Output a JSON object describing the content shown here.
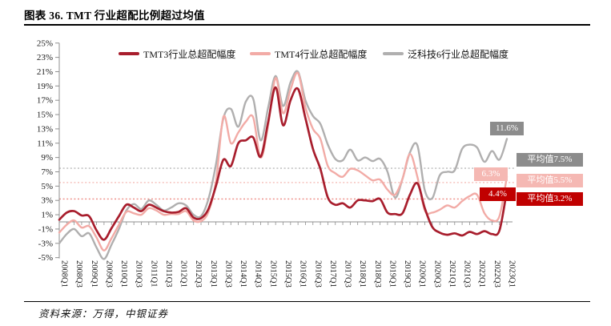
{
  "header": {
    "title": "图表 36. TMT 行业超配比例超过均值"
  },
  "footer": {
    "source": "资料来源：万得，中银证券"
  },
  "annotations": {
    "end_labels": [
      {
        "text": "11.6%",
        "color": "#8c8c8c"
      },
      {
        "text": "6.3%",
        "color": "#f5b8b3"
      },
      {
        "text": "4.4%",
        "color": "#c00000"
      }
    ],
    "mean_labels": [
      {
        "text": "平均值7.5%",
        "color": "#8c8c8c"
      },
      {
        "text": "平均值5.5%",
        "color": "#f5b8b3"
      },
      {
        "text": "平均值3.2%",
        "color": "#c00000"
      }
    ]
  },
  "chart_data": {
    "type": "line",
    "title": "TMT 行业超配比例超过均值",
    "xlabel": "",
    "ylabel": "",
    "ylim": [
      -5,
      25
    ],
    "grid": "off",
    "legend_position": "top",
    "x_label_every": 2,
    "y_ticks": [
      25,
      23,
      21,
      19,
      17,
      15,
      13,
      11,
      9,
      7,
      5,
      3,
      1,
      -1,
      -3,
      -5
    ],
    "categories": [
      "2008Q1",
      "2008Q2",
      "2008Q3",
      "2008Q4",
      "2009Q1",
      "2009Q2",
      "2009Q3",
      "2009Q4",
      "2010Q1",
      "2010Q2",
      "2010Q3",
      "2010Q4",
      "2011Q1",
      "2011Q2",
      "2011Q3",
      "2011Q4",
      "2012Q1",
      "2012Q2",
      "2012Q3",
      "2012Q4",
      "2013Q1",
      "2013Q2",
      "2013Q3",
      "2013Q4",
      "2014Q1",
      "2014Q2",
      "2014Q3",
      "2014Q4",
      "2015Q1",
      "2015Q2",
      "2015Q3",
      "2015Q4",
      "2016Q1",
      "2016Q2",
      "2016Q3",
      "2016Q4",
      "2017Q1",
      "2017Q2",
      "2017Q3",
      "2017Q4",
      "2018Q1",
      "2018Q2",
      "2018Q3",
      "2018Q4",
      "2019Q1",
      "2019Q2",
      "2019Q3",
      "2019Q4",
      "2020Q1",
      "2020Q2",
      "2020Q3",
      "2020Q4",
      "2021Q1",
      "2021Q2",
      "2021Q3",
      "2021Q4",
      "2022Q1",
      "2022Q2",
      "2022Q3",
      "2022Q4",
      "2023Q1"
    ],
    "series": [
      {
        "name": "TMT3行业总超配幅度",
        "color": "#a81e2d",
        "mean": 3.2,
        "mean_dash_color": "#ee8b84",
        "end_value": 4.4,
        "values": [
          0.3,
          1.3,
          1.5,
          0.9,
          0.8,
          -1.2,
          -2.5,
          -0.9,
          0.8,
          2.4,
          2.0,
          1.5,
          2.4,
          2.0,
          1.5,
          1.3,
          1.4,
          1.9,
          0.6,
          0.5,
          1.8,
          5.0,
          8.7,
          7.8,
          11.0,
          11.4,
          11.8,
          9.1,
          14.0,
          18.8,
          13.5,
          17.0,
          18.6,
          14.5,
          10.2,
          7.4,
          3.4,
          2.4,
          2.6,
          2.0,
          3.0,
          3.0,
          2.9,
          3.2,
          1.3,
          1.1,
          1.2,
          3.8,
          5.4,
          1.9,
          -0.7,
          -1.5,
          -1.8,
          -1.6,
          -1.9,
          -1.4,
          -1.7,
          -1.3,
          -1.7,
          -1.2,
          4.4
        ]
      },
      {
        "name": "TMT4行业总超配幅度",
        "color": "#f2aba6",
        "mean": 5.5,
        "mean_dash_color": "#f6c3be",
        "end_value": 6.3,
        "values": [
          -1.5,
          -0.4,
          0.2,
          -0.8,
          -0.6,
          -2.2,
          -4.0,
          -2.3,
          -0.4,
          1.4,
          1.2,
          1.0,
          1.9,
          1.6,
          1.0,
          1.1,
          1.1,
          1.5,
          0.2,
          0.1,
          1.4,
          5.6,
          14.7,
          11.0,
          12.5,
          14.0,
          14.6,
          9.0,
          13.5,
          20.1,
          15.2,
          18.5,
          20.8,
          16.0,
          13.0,
          11.6,
          7.8,
          6.8,
          6.3,
          7.4,
          7.2,
          6.5,
          5.8,
          5.9,
          4.5,
          3.8,
          6.0,
          9.5,
          6.3,
          1.6,
          1.3,
          1.7,
          2.3,
          2.0,
          2.9,
          3.6,
          3.8,
          1.2,
          0.2,
          0.8,
          6.3
        ]
      },
      {
        "name": "泛科技6行业总超配幅度",
        "color": "#b0afaf",
        "mean": 7.5,
        "mean_dash_color": "#b8b8b8",
        "end_value": 11.6,
        "values": [
          -3.0,
          -1.7,
          -1.0,
          -2.0,
          -1.6,
          -3.6,
          -5.2,
          -3.2,
          -1.0,
          1.6,
          2.5,
          1.8,
          3.0,
          2.4,
          1.6,
          2.0,
          2.6,
          2.3,
          1.0,
          0.8,
          3.2,
          8.0,
          14.5,
          15.8,
          13.3,
          16.8,
          17.2,
          11.4,
          16.0,
          20.4,
          16.2,
          19.5,
          21.0,
          17.0,
          14.8,
          13.7,
          10.8,
          8.8,
          8.6,
          10.1,
          8.6,
          9.0,
          8.5,
          8.8,
          7.0,
          3.4,
          6.0,
          9.7,
          10.7,
          4.4,
          3.3,
          6.5,
          7.0,
          7.2,
          10.2,
          10.8,
          10.4,
          8.4,
          9.9,
          8.7,
          11.6
        ]
      }
    ]
  }
}
